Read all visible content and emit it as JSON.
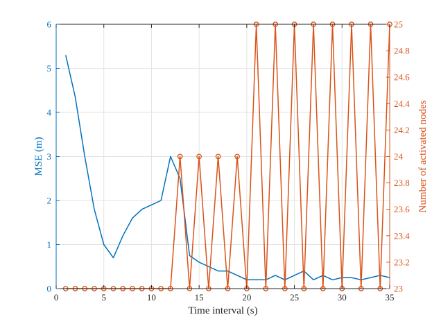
{
  "chart_data": {
    "type": "line",
    "title": "",
    "xlabel": "Time interval (s)",
    "ylabel_left": "MSE (m)",
    "ylabel_right": "Number of activated nodes",
    "xlim": [
      0,
      35
    ],
    "ylim_left": [
      0,
      6
    ],
    "ylim_right": [
      23,
      25
    ],
    "grid": true,
    "x_ticks": [
      "0",
      "5",
      "10",
      "15",
      "20",
      "25",
      "30",
      "35"
    ],
    "y_left_ticks": [
      "0",
      "1",
      "2",
      "3",
      "4",
      "5",
      "6"
    ],
    "y_right_ticks": [
      "23",
      "23.2",
      "23.4",
      "23.6",
      "23.8",
      "24",
      "24.2",
      "24.4",
      "24.6",
      "24.8",
      "25"
    ],
    "colors": {
      "left": "#0072BD",
      "right": "#D95319"
    },
    "series": [
      {
        "axis": "left",
        "marker": "none",
        "x": [
          1,
          2,
          3,
          4,
          5,
          6,
          7,
          8,
          9,
          10,
          11,
          12,
          13,
          14,
          15,
          16,
          17,
          18,
          19,
          20,
          21,
          22,
          23,
          24,
          25,
          26,
          27,
          28,
          29,
          30,
          31,
          32,
          33,
          34,
          35
        ],
        "values": [
          5.3,
          4.35,
          3.0,
          1.8,
          1.0,
          0.7,
          1.2,
          1.6,
          1.8,
          1.9,
          2.0,
          3.0,
          2.5,
          0.75,
          0.6,
          0.5,
          0.4,
          0.4,
          0.3,
          0.2,
          0.2,
          0.2,
          0.3,
          0.2,
          0.3,
          0.4,
          0.2,
          0.3,
          0.2,
          0.25,
          0.25,
          0.2,
          0.25,
          0.3,
          0.25
        ]
      },
      {
        "axis": "right",
        "marker": "circle",
        "x": [
          1,
          2,
          3,
          4,
          5,
          6,
          7,
          8,
          9,
          10,
          11,
          12,
          13,
          14,
          15,
          16,
          17,
          18,
          19,
          20,
          21,
          22,
          23,
          24,
          25,
          26,
          27,
          28,
          29,
          30,
          31,
          32,
          33,
          34,
          35
        ],
        "values": [
          23,
          23,
          23,
          23,
          23,
          23,
          23,
          23,
          23,
          23,
          23,
          23,
          24,
          23,
          24,
          23,
          24,
          23,
          24,
          23,
          25,
          23,
          25,
          23,
          25,
          23,
          25,
          23,
          25,
          23,
          25,
          23,
          25,
          23,
          25
        ]
      }
    ]
  }
}
